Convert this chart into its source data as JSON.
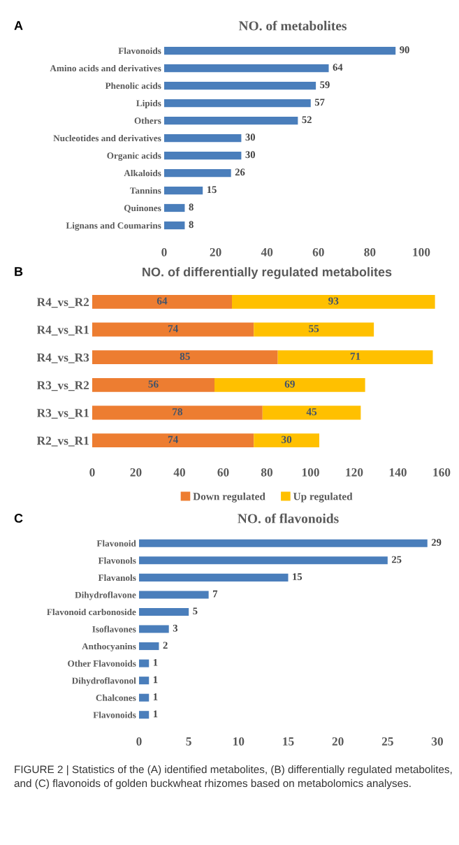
{
  "chart_data": [
    {
      "type": "bar",
      "orientation": "horizontal",
      "title": "NO. of metabolites",
      "annotations": [
        "A"
      ],
      "categories": [
        "Flavonoids",
        "Amino acids and derivatives",
        "Phenolic acids",
        "Lipids",
        "Others",
        "Nucleotides and derivatives",
        "Organic acids",
        "Alkaloids",
        "Tannins",
        "Quinones",
        "Lignans and Coumarins"
      ],
      "values": [
        90,
        64,
        59,
        57,
        52,
        30,
        30,
        26,
        15,
        8,
        8
      ],
      "color": "#4a7ebb",
      "xlim": [
        0,
        100
      ],
      "xticks": [
        0,
        20,
        40,
        60,
        80,
        100
      ],
      "data_labels": true,
      "grid": false
    },
    {
      "type": "bar",
      "orientation": "horizontal",
      "stacked": true,
      "title": "NO. of differentially regulated metabolites",
      "annotations": [
        "B"
      ],
      "categories": [
        "R4_vs_R2",
        "R4_vs_R1",
        "R4_vs_R3",
        "R3_vs_R2",
        "R3_vs_R1",
        "R2_vs_R1"
      ],
      "series": [
        {
          "name": "Down regulated",
          "color": "#ed7d31",
          "values": [
            64,
            74,
            85,
            56,
            78,
            74
          ]
        },
        {
          "name": "Up regulated",
          "color": "#ffc000",
          "values": [
            93,
            55,
            71,
            69,
            45,
            30
          ]
        }
      ],
      "xlim": [
        0,
        160
      ],
      "xticks": [
        0,
        20,
        40,
        60,
        80,
        100,
        120,
        140,
        160
      ],
      "data_labels": true,
      "legend": "bottom",
      "grid": false
    },
    {
      "type": "bar",
      "orientation": "horizontal",
      "title": "NO. of flavonoids",
      "annotations": [
        "C",
        "FIGURE 2 | Statistics of the (A) identified metabolites, (B) differentially regulated metabolites, and (C) flavonoids of golden buckwheat rhizomes based on metabolomics analyses."
      ],
      "categories": [
        "Flavonoid",
        "Flavonols",
        "Flavanols",
        "Dihydroflavone",
        "Flavonoid carbonoside",
        "Isoflavones",
        "Anthocyanins",
        "Other Flavonoids",
        "Dihydroflavonol",
        "Chalcones",
        "Flavonoids"
      ],
      "values": [
        29,
        25,
        15,
        7,
        5,
        3,
        2,
        1,
        1,
        1,
        1
      ],
      "color": "#4a7ebb",
      "xlim": [
        0,
        30
      ],
      "xticks": [
        0,
        5,
        10,
        15,
        20,
        25,
        30
      ],
      "data_labels": true,
      "grid": false
    }
  ]
}
